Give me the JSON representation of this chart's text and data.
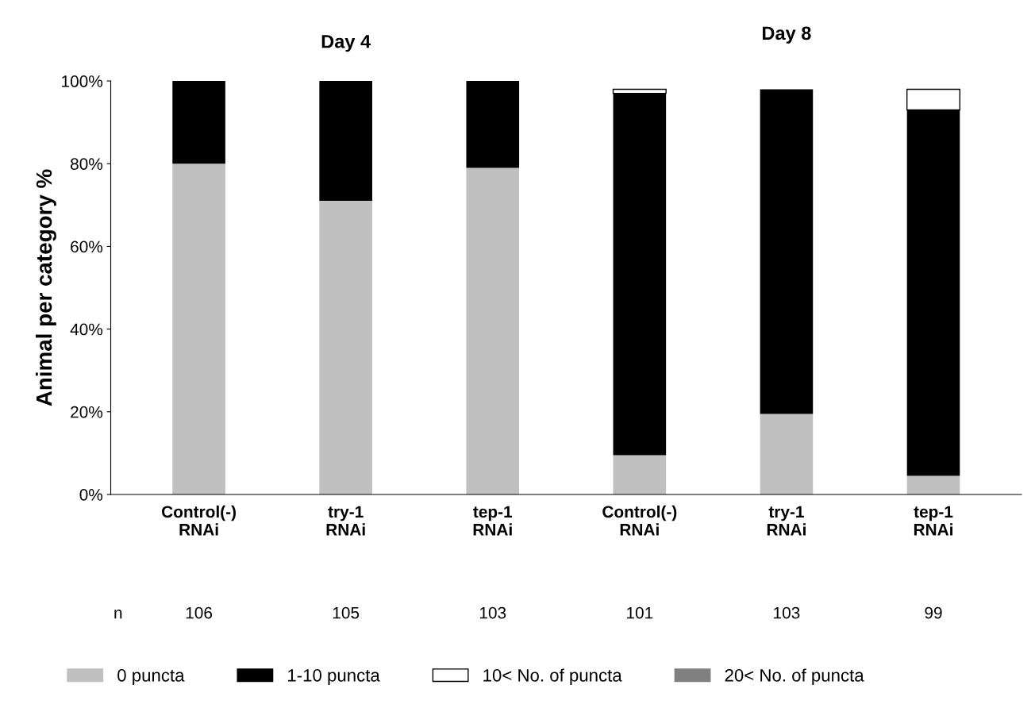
{
  "chart_data": {
    "type": "bar",
    "stacked": true,
    "ylabel": "Animal per category %",
    "categories": [
      "Control(-)\nRNAi",
      "try-1\nRNAi",
      "tep-1\nRNAi",
      "Control(-)\nRNAi",
      "try-1\nRNAi",
      "tep-1\nRNAi"
    ],
    "series": [
      {
        "name": "0 puncta",
        "color": "#c0c0c0",
        "values": [
          80,
          71,
          79,
          9.5,
          19.5,
          4.5
        ]
      },
      {
        "name": "1-10 puncta",
        "color": "#000000",
        "values": [
          20,
          29,
          21,
          87.5,
          78.5,
          88.5
        ]
      },
      {
        "name": "10< No. of puncta",
        "color": "#ffffff",
        "values": [
          0,
          0,
          0,
          1,
          0,
          5
        ]
      },
      {
        "name": "20< No. of puncta",
        "color": "#808080",
        "values": [
          0,
          0,
          0,
          0,
          0,
          0
        ]
      }
    ],
    "ylim": [
      0,
      100
    ],
    "yticks": [
      {
        "value": 0,
        "label": "0%"
      },
      {
        "value": 20,
        "label": "20%"
      },
      {
        "value": 40,
        "label": "40%"
      },
      {
        "value": 60,
        "label": "60%"
      },
      {
        "value": 80,
        "label": "80%"
      },
      {
        "value": 100,
        "label": "100%"
      }
    ],
    "grid": false,
    "legend": "bottom",
    "annotations": [
      "Day 4",
      "Day 8",
      "n",
      "106",
      "105",
      "103",
      "101",
      "103",
      "99"
    ]
  }
}
